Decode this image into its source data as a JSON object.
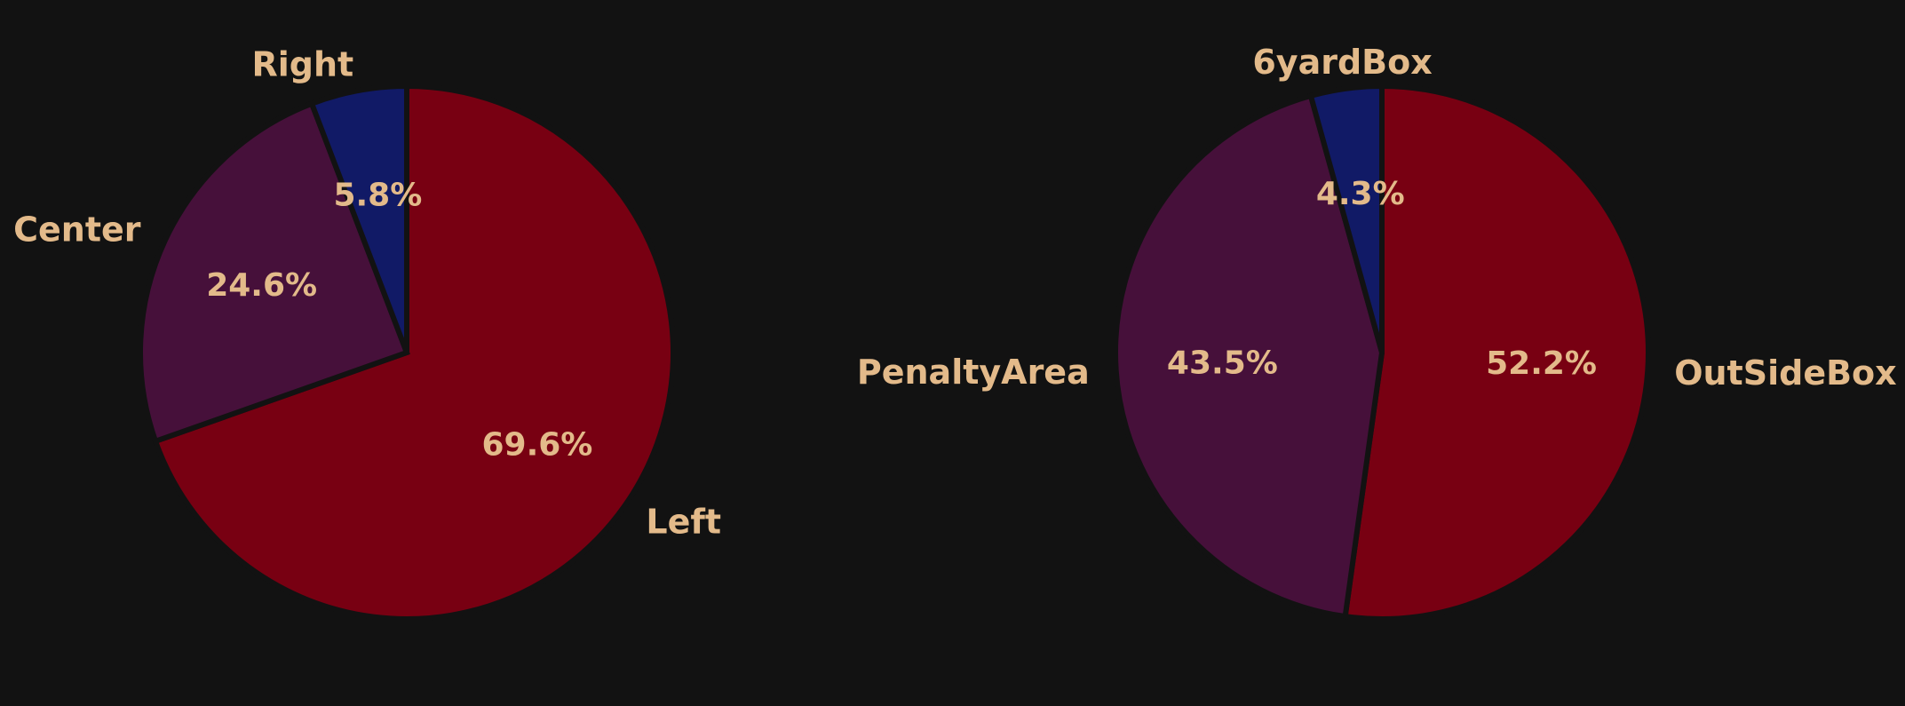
{
  "colors": {
    "background": "#121212",
    "text": "#E3BA8A",
    "slice_red": "#780012",
    "slice_purple": "#46103A",
    "slice_navy": "#111A66"
  },
  "chart_data": [
    {
      "type": "pie",
      "title": "",
      "start_angle_deg": 90,
      "direction": "clockwise",
      "categories": [
        "Left",
        "Center",
        "Right"
      ],
      "values": [
        69.6,
        24.6,
        5.8
      ],
      "percent_labels": [
        "69.6%",
        "24.6%",
        "5.8%"
      ],
      "colors": [
        "#780012",
        "#46103A",
        "#111A66"
      ]
    },
    {
      "type": "pie",
      "title": "",
      "start_angle_deg": 90,
      "direction": "clockwise",
      "categories": [
        "OutSideBox",
        "PenaltyArea",
        "6yardBox"
      ],
      "values": [
        52.2,
        43.5,
        4.3
      ],
      "percent_labels": [
        "52.2%",
        "43.5%",
        "4.3%"
      ],
      "colors": [
        "#780012",
        "#46103A",
        "#111A66"
      ]
    }
  ]
}
